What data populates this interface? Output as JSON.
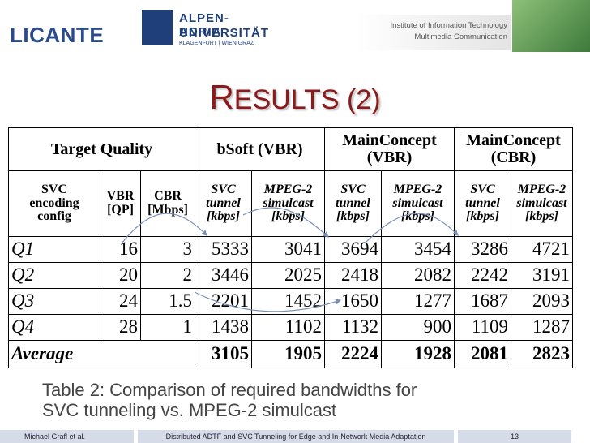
{
  "header": {
    "logo_left": "LICANTE",
    "university": "ALPEN-ADRIA",
    "university_line2": "UNIVERSITÄT",
    "university_line3": "KLAGENFURT | WIEN GRAZ",
    "institute": "Institute of Information Technology",
    "department": "Multimedia Communication"
  },
  "title": "RESULTS (2)",
  "table": {
    "header_row1": [
      "Target Quality",
      "bSoft (VBR)",
      "MainConcept\n(VBR)",
      "MainConcept\n(CBR)"
    ],
    "header_row2": [
      "SVC\nencoding\nconfig",
      "VBR\n[QP]",
      "CBR\n[Mbps]",
      "SVC\ntunnel\n[kbps]",
      "MPEG-2\nsimulcast\n[kbps]",
      "SVC\ntunnel\n[kbps]",
      "MPEG-2\nsimulcast\n[kbps]",
      "SVC\ntunnel\n[kbps]",
      "MPEG-2\nsimulcast\n[kbps]"
    ],
    "rows": [
      {
        "label": "Q1",
        "values": [
          16,
          3,
          5333,
          3041,
          3694,
          3454,
          3286,
          4721
        ]
      },
      {
        "label": "Q2",
        "values": [
          20,
          2,
          3446,
          2025,
          2418,
          2082,
          2242,
          3191
        ]
      },
      {
        "label": "Q3",
        "values": [
          24,
          1.5,
          2201,
          1452,
          1650,
          1277,
          1687,
          2093
        ]
      },
      {
        "label": "Q4",
        "values": [
          28,
          1,
          1438,
          1102,
          1132,
          900,
          1109,
          1287
        ]
      }
    ],
    "average": {
      "label": "Average",
      "values": [
        3105,
        1905,
        2224,
        1928,
        2081,
        2823
      ]
    }
  },
  "caption": "Table 2: Comparison of required bandwidths for\nSVC tunneling vs. MPEG-2 simulcast",
  "footer": {
    "author": "Michael Grafl et al.",
    "talk": "Distributed ADTF and SVC Tunneling for Edge and In-Network Media Adaptation",
    "page": "13"
  }
}
